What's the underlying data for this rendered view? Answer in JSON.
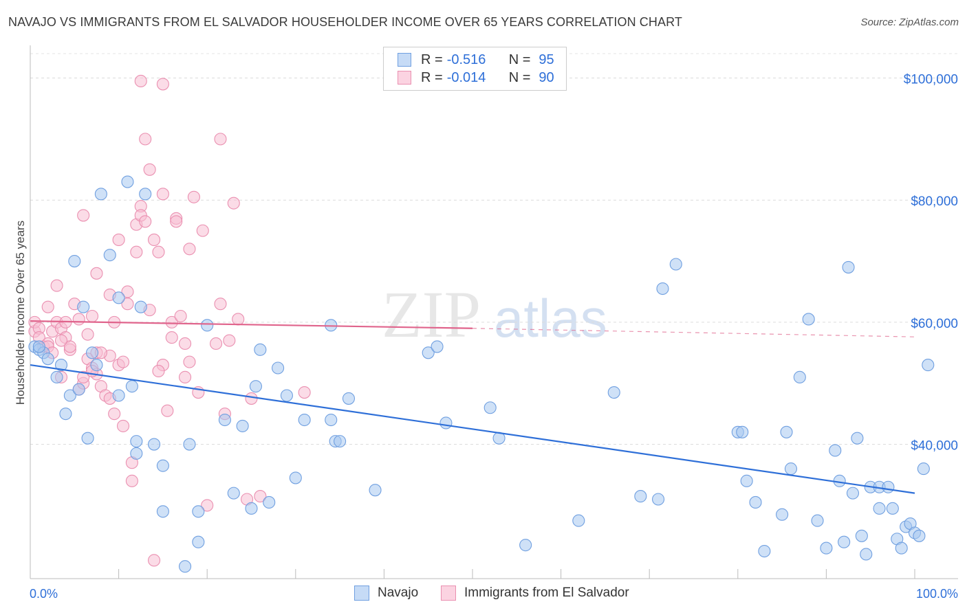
{
  "header": {
    "title": "NAVAJO VS IMMIGRANTS FROM EL SALVADOR HOUSEHOLDER INCOME OVER 65 YEARS CORRELATION CHART",
    "source": "Source: ZipAtlas.com"
  },
  "watermark": {
    "zip": "ZIP",
    "atlas": "atlas"
  },
  "legend": {
    "rows": [
      {
        "r_label": "R =",
        "r_value": "-0.516",
        "n_label": "N =",
        "n_value": "95",
        "color": "#a8c8f0",
        "border": "#6f9fe0"
      },
      {
        "r_label": "R =",
        "r_value": "-0.014",
        "n_label": "N =",
        "n_value": "90",
        "color": "#f8c0d4",
        "border": "#ea8fb0"
      }
    ]
  },
  "bottom_legend": {
    "navajo": "Navajo",
    "salvador": "Immigrants from El Salvador"
  },
  "chart_data": {
    "type": "scatter",
    "title": "NAVAJO VS IMMIGRANTS FROM EL SALVADOR HOUSEHOLDER INCOME OVER 65 YEARS CORRELATION CHART",
    "xlabel": "",
    "ylabel": "Householder Income Over 65 years",
    "xlim": [
      0,
      100
    ],
    "ylim": [
      18000,
      104000
    ],
    "x_tick_labels": [
      "0.0%",
      "100.0%"
    ],
    "y_ticks": [
      40000,
      60000,
      80000,
      100000
    ],
    "y_tick_labels": [
      "$40,000",
      "$60,000",
      "$80,000",
      "$100,000"
    ],
    "grid": "horizontal dashed",
    "colors": {
      "navajo_fill": "#a8c8f0",
      "navajo_stroke": "#6f9fe0",
      "navajo_line": "#2e6fd8",
      "salvador_fill": "#f8c0d4",
      "salvador_stroke": "#ea8fb0",
      "salvador_line": "#e0648c",
      "axis_label": "#2e6fd8"
    },
    "series": [
      {
        "name": "Navajo",
        "trend": {
          "x": [
            0,
            100
          ],
          "y": [
            53000,
            32000
          ]
        },
        "points": [
          [
            0.5,
            56000
          ],
          [
            1,
            55500
          ],
          [
            1.5,
            55000
          ],
          [
            2,
            54000
          ],
          [
            3,
            51000
          ],
          [
            3.5,
            53000
          ],
          [
            4,
            45000
          ],
          [
            4.5,
            48000
          ],
          [
            5,
            70000
          ],
          [
            6,
            62500
          ],
          [
            5.5,
            49000
          ],
          [
            6.5,
            41000
          ],
          [
            7,
            55000
          ],
          [
            7.5,
            53000
          ],
          [
            8,
            81000
          ],
          [
            9,
            71000
          ],
          [
            10,
            48000
          ],
          [
            10,
            64000
          ],
          [
            11,
            83000
          ],
          [
            11.5,
            49500
          ],
          [
            12,
            38500
          ],
          [
            12,
            40500
          ],
          [
            12.5,
            62500
          ],
          [
            13,
            81000
          ],
          [
            14,
            40000
          ],
          [
            15,
            36500
          ],
          [
            15,
            29000
          ],
          [
            18,
            40000
          ],
          [
            19,
            29000
          ],
          [
            19,
            24000
          ],
          [
            17.5,
            20000
          ],
          [
            20,
            59500
          ],
          [
            22,
            44000
          ],
          [
            23,
            32000
          ],
          [
            24,
            43000
          ],
          [
            25,
            29500
          ],
          [
            25.5,
            49500
          ],
          [
            26,
            55500
          ],
          [
            27,
            30500
          ],
          [
            28,
            52500
          ],
          [
            29,
            48000
          ],
          [
            30,
            34500
          ],
          [
            31,
            44000
          ],
          [
            34,
            44000
          ],
          [
            34,
            59500
          ],
          [
            34.5,
            40500
          ],
          [
            35,
            40500
          ],
          [
            36,
            47500
          ],
          [
            39,
            32500
          ],
          [
            45,
            55000
          ],
          [
            46,
            56000
          ],
          [
            47,
            43500
          ],
          [
            52,
            46000
          ],
          [
            53,
            41000
          ],
          [
            56,
            23500
          ],
          [
            62,
            27500
          ],
          [
            66,
            48500
          ],
          [
            69,
            31500
          ],
          [
            71,
            31000
          ],
          [
            71.5,
            65500
          ],
          [
            73,
            69500
          ],
          [
            80,
            42000
          ],
          [
            80.5,
            42000
          ],
          [
            81,
            34000
          ],
          [
            82,
            30500
          ],
          [
            83,
            22500
          ],
          [
            85,
            28500
          ],
          [
            85.5,
            42000
          ],
          [
            86,
            36000
          ],
          [
            87,
            51000
          ],
          [
            88,
            60500
          ],
          [
            89,
            27500
          ],
          [
            90,
            23000
          ],
          [
            91,
            39000
          ],
          [
            91.5,
            34000
          ],
          [
            92,
            24000
          ],
          [
            92.5,
            69000
          ],
          [
            93,
            32000
          ],
          [
            93.5,
            41000
          ],
          [
            94,
            25000
          ],
          [
            94.5,
            22000
          ],
          [
            95,
            33000
          ],
          [
            96,
            29500
          ],
          [
            96,
            33000
          ],
          [
            97,
            33000
          ],
          [
            97.5,
            29500
          ],
          [
            98,
            24500
          ],
          [
            98.5,
            23000
          ],
          [
            99,
            26500
          ],
          [
            99.5,
            27000
          ],
          [
            100,
            25500
          ],
          [
            100.5,
            25000
          ],
          [
            101,
            36000
          ],
          [
            101.5,
            53000
          ],
          [
            1,
            56000
          ]
        ]
      },
      {
        "name": "Immigrants from El Salvador",
        "trend": {
          "x": [
            0,
            50
          ],
          "y": [
            60200,
            59000
          ]
        },
        "trend_dashed": {
          "x": [
            50,
            100
          ],
          "y": [
            59000,
            57600
          ]
        },
        "points": [
          [
            0.5,
            58500
          ],
          [
            0.5,
            60000
          ],
          [
            1,
            59000
          ],
          [
            1,
            57500
          ],
          [
            1.5,
            56000
          ],
          [
            2,
            62500
          ],
          [
            2.5,
            58500
          ],
          [
            3,
            60000
          ],
          [
            3,
            66000
          ],
          [
            3.5,
            51000
          ],
          [
            3.5,
            59000
          ],
          [
            4,
            57500
          ],
          [
            4,
            60000
          ],
          [
            4.5,
            55500
          ],
          [
            4.5,
            56000
          ],
          [
            5,
            63000
          ],
          [
            5.5,
            49000
          ],
          [
            5.5,
            60500
          ],
          [
            6,
            50000
          ],
          [
            6,
            51000
          ],
          [
            6,
            77500
          ],
          [
            6.5,
            54000
          ],
          [
            6.5,
            58000
          ],
          [
            7,
            52500
          ],
          [
            7,
            61000
          ],
          [
            7.5,
            51500
          ],
          [
            7.5,
            55000
          ],
          [
            7.5,
            68000
          ],
          [
            8,
            49500
          ],
          [
            8.5,
            48000
          ],
          [
            9,
            47500
          ],
          [
            9,
            54500
          ],
          [
            9,
            64500
          ],
          [
            9.5,
            60000
          ],
          [
            9.5,
            45000
          ],
          [
            10,
            53000
          ],
          [
            10,
            73500
          ],
          [
            10.5,
            43000
          ],
          [
            11,
            63000
          ],
          [
            11,
            65000
          ],
          [
            11.5,
            34000
          ],
          [
            11.5,
            37000
          ],
          [
            12,
            71500
          ],
          [
            12,
            76000
          ],
          [
            12.5,
            79000
          ],
          [
            12.5,
            77500
          ],
          [
            13,
            90000
          ],
          [
            13,
            76500
          ],
          [
            13.5,
            85000
          ],
          [
            13.5,
            62000
          ],
          [
            14,
            21000
          ],
          [
            14,
            73500
          ],
          [
            14.5,
            71500
          ],
          [
            15,
            53000
          ],
          [
            15,
            81000
          ],
          [
            15.5,
            45500
          ],
          [
            16,
            60000
          ],
          [
            16,
            57500
          ],
          [
            16.5,
            77000
          ],
          [
            16.5,
            76500
          ],
          [
            17,
            61000
          ],
          [
            17.5,
            56500
          ],
          [
            18,
            72000
          ],
          [
            18,
            53500
          ],
          [
            18.5,
            80500
          ],
          [
            19,
            48500
          ],
          [
            19.5,
            75000
          ],
          [
            20,
            30000
          ],
          [
            21,
            56500
          ],
          [
            21.5,
            90000
          ],
          [
            21.5,
            63000
          ],
          [
            22,
            45000
          ],
          [
            22.5,
            57000
          ],
          [
            23,
            79500
          ],
          [
            23.5,
            60500
          ],
          [
            24.5,
            31000
          ],
          [
            25,
            47500
          ],
          [
            26,
            31500
          ],
          [
            31,
            48500
          ],
          [
            15,
            99000
          ],
          [
            12.5,
            99500
          ],
          [
            7,
            52000
          ],
          [
            8,
            55000
          ],
          [
            3.5,
            57000
          ],
          [
            2,
            56500
          ],
          [
            2,
            56000
          ],
          [
            2.5,
            55000
          ],
          [
            14.5,
            52000
          ],
          [
            10.5,
            53500
          ],
          [
            17.5,
            51000
          ]
        ]
      }
    ]
  }
}
